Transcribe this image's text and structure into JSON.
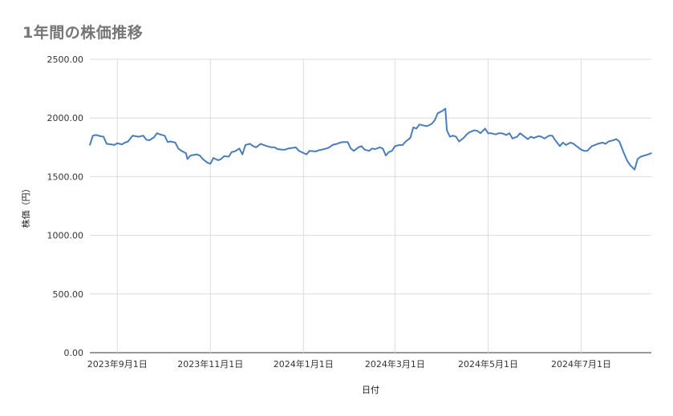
{
  "chart_data": {
    "type": "line",
    "title": "1年間の株価推移",
    "xlabel": "日付",
    "ylabel": "株価（円）",
    "ylim": [
      0,
      2500
    ],
    "yticks": [
      "0.00",
      "500.00",
      "1000.00",
      "1500.00",
      "2000.00",
      "2500.00"
    ],
    "xticks": [
      "2023年9月1日",
      "2023年11月1日",
      "2024年1月1日",
      "2024年3月1日",
      "2024年5月1日",
      "2024年7月1日"
    ],
    "xtick_dates": [
      "2023-09-01",
      "2023-11-01",
      "2024-01-01",
      "2024-03-01",
      "2024-05-01",
      "2024-07-01"
    ],
    "xlim": [
      "2023-08-14",
      "2024-08-16"
    ],
    "grid": true,
    "line_color": "#4a7ebb",
    "series": [
      {
        "name": "",
        "points": [
          [
            "2023-08-14",
            1770
          ],
          [
            "2023-08-16",
            1850
          ],
          [
            "2023-08-18",
            1855
          ],
          [
            "2023-08-21",
            1845
          ],
          [
            "2023-08-23",
            1840
          ],
          [
            "2023-08-25",
            1780
          ],
          [
            "2023-08-28",
            1775
          ],
          [
            "2023-08-30",
            1770
          ],
          [
            "2023-09-01",
            1785
          ],
          [
            "2023-09-04",
            1775
          ],
          [
            "2023-09-06",
            1790
          ],
          [
            "2023-09-08",
            1800
          ],
          [
            "2023-09-11",
            1850
          ],
          [
            "2023-09-13",
            1845
          ],
          [
            "2023-09-15",
            1840
          ],
          [
            "2023-09-18",
            1850
          ],
          [
            "2023-09-20",
            1815
          ],
          [
            "2023-09-22",
            1810
          ],
          [
            "2023-09-25",
            1835
          ],
          [
            "2023-09-27",
            1870
          ],
          [
            "2023-09-29",
            1860
          ],
          [
            "2023-10-02",
            1850
          ],
          [
            "2023-10-04",
            1795
          ],
          [
            "2023-10-06",
            1800
          ],
          [
            "2023-10-09",
            1790
          ],
          [
            "2023-10-11",
            1740
          ],
          [
            "2023-10-13",
            1720
          ],
          [
            "2023-10-16",
            1700
          ],
          [
            "2023-10-17",
            1650
          ],
          [
            "2023-10-19",
            1680
          ],
          [
            "2023-10-23",
            1690
          ],
          [
            "2023-10-25",
            1680
          ],
          [
            "2023-10-27",
            1650
          ],
          [
            "2023-10-30",
            1620
          ],
          [
            "2023-11-01",
            1610
          ],
          [
            "2023-11-03",
            1660
          ],
          [
            "2023-11-06",
            1640
          ],
          [
            "2023-11-08",
            1650
          ],
          [
            "2023-11-10",
            1675
          ],
          [
            "2023-11-13",
            1670
          ],
          [
            "2023-11-15",
            1710
          ],
          [
            "2023-11-17",
            1715
          ],
          [
            "2023-11-20",
            1740
          ],
          [
            "2023-11-22",
            1690
          ],
          [
            "2023-11-24",
            1770
          ],
          [
            "2023-11-27",
            1780
          ],
          [
            "2023-11-29",
            1760
          ],
          [
            "2023-12-01",
            1750
          ],
          [
            "2023-12-04",
            1780
          ],
          [
            "2023-12-06",
            1770
          ],
          [
            "2023-12-08",
            1760
          ],
          [
            "2023-12-11",
            1750
          ],
          [
            "2023-12-13",
            1750
          ],
          [
            "2023-12-15",
            1735
          ],
          [
            "2023-12-18",
            1730
          ],
          [
            "2023-12-20",
            1730
          ],
          [
            "2023-12-22",
            1740
          ],
          [
            "2023-12-25",
            1745
          ],
          [
            "2023-12-27",
            1750
          ],
          [
            "2023-12-29",
            1720
          ],
          [
            "2024-01-03",
            1690
          ],
          [
            "2024-01-05",
            1720
          ],
          [
            "2024-01-09",
            1715
          ],
          [
            "2024-01-11",
            1725
          ],
          [
            "2024-01-13",
            1730
          ],
          [
            "2024-01-16",
            1740
          ],
          [
            "2024-01-18",
            1750
          ],
          [
            "2024-01-20",
            1770
          ],
          [
            "2024-01-23",
            1780
          ],
          [
            "2024-01-25",
            1790
          ],
          [
            "2024-01-27",
            1795
          ],
          [
            "2024-01-30",
            1795
          ],
          [
            "2024-02-01",
            1740
          ],
          [
            "2024-02-03",
            1720
          ],
          [
            "2024-02-06",
            1750
          ],
          [
            "2024-02-08",
            1760
          ],
          [
            "2024-02-10",
            1730
          ],
          [
            "2024-02-13",
            1720
          ],
          [
            "2024-02-15",
            1740
          ],
          [
            "2024-02-17",
            1735
          ],
          [
            "2024-02-20",
            1750
          ],
          [
            "2024-02-22",
            1740
          ],
          [
            "2024-02-24",
            1680
          ],
          [
            "2024-02-26",
            1710
          ],
          [
            "2024-02-28",
            1720
          ],
          [
            "2024-03-01",
            1760
          ],
          [
            "2024-03-04",
            1770
          ],
          [
            "2024-03-06",
            1770
          ],
          [
            "2024-03-08",
            1800
          ],
          [
            "2024-03-11",
            1830
          ],
          [
            "2024-03-13",
            1920
          ],
          [
            "2024-03-15",
            1910
          ],
          [
            "2024-03-17",
            1945
          ],
          [
            "2024-03-20",
            1935
          ],
          [
            "2024-03-22",
            1930
          ],
          [
            "2024-03-25",
            1950
          ],
          [
            "2024-03-27",
            1980
          ],
          [
            "2024-03-29",
            2040
          ],
          [
            "2024-04-01",
            2060
          ],
          [
            "2024-04-03",
            2080
          ],
          [
            "2024-04-04",
            1895
          ],
          [
            "2024-04-06",
            1840
          ],
          [
            "2024-04-08",
            1850
          ],
          [
            "2024-04-10",
            1840
          ],
          [
            "2024-04-12",
            1800
          ],
          [
            "2024-04-15",
            1830
          ],
          [
            "2024-04-17",
            1860
          ],
          [
            "2024-04-19",
            1880
          ],
          [
            "2024-04-22",
            1895
          ],
          [
            "2024-04-24",
            1890
          ],
          [
            "2024-04-26",
            1870
          ],
          [
            "2024-04-29",
            1910
          ],
          [
            "2024-05-01",
            1870
          ],
          [
            "2024-05-03",
            1870
          ],
          [
            "2024-05-06",
            1860
          ],
          [
            "2024-05-08",
            1870
          ],
          [
            "2024-05-10",
            1870
          ],
          [
            "2024-05-13",
            1855
          ],
          [
            "2024-05-15",
            1870
          ],
          [
            "2024-05-17",
            1825
          ],
          [
            "2024-05-20",
            1840
          ],
          [
            "2024-05-22",
            1870
          ],
          [
            "2024-05-24",
            1850
          ],
          [
            "2024-05-27",
            1820
          ],
          [
            "2024-05-29",
            1840
          ],
          [
            "2024-05-31",
            1830
          ],
          [
            "2024-06-03",
            1845
          ],
          [
            "2024-06-05",
            1840
          ],
          [
            "2024-06-07",
            1825
          ],
          [
            "2024-06-10",
            1850
          ],
          [
            "2024-06-12",
            1850
          ],
          [
            "2024-06-14",
            1810
          ],
          [
            "2024-06-17",
            1760
          ],
          [
            "2024-06-19",
            1790
          ],
          [
            "2024-06-21",
            1770
          ],
          [
            "2024-06-24",
            1790
          ],
          [
            "2024-06-26",
            1780
          ],
          [
            "2024-06-28",
            1760
          ],
          [
            "2024-07-01",
            1730
          ],
          [
            "2024-07-03",
            1720
          ],
          [
            "2024-07-05",
            1720
          ],
          [
            "2024-07-08",
            1760
          ],
          [
            "2024-07-10",
            1770
          ],
          [
            "2024-07-12",
            1780
          ],
          [
            "2024-07-15",
            1790
          ],
          [
            "2024-07-17",
            1780
          ],
          [
            "2024-07-19",
            1800
          ],
          [
            "2024-07-22",
            1810
          ],
          [
            "2024-07-24",
            1820
          ],
          [
            "2024-07-26",
            1800
          ],
          [
            "2024-07-29",
            1700
          ],
          [
            "2024-07-31",
            1640
          ],
          [
            "2024-08-02",
            1600
          ],
          [
            "2024-08-05",
            1560
          ],
          [
            "2024-08-07",
            1650
          ],
          [
            "2024-08-09",
            1670
          ],
          [
            "2024-08-14",
            1690
          ],
          [
            "2024-08-16",
            1700
          ]
        ]
      }
    ]
  }
}
